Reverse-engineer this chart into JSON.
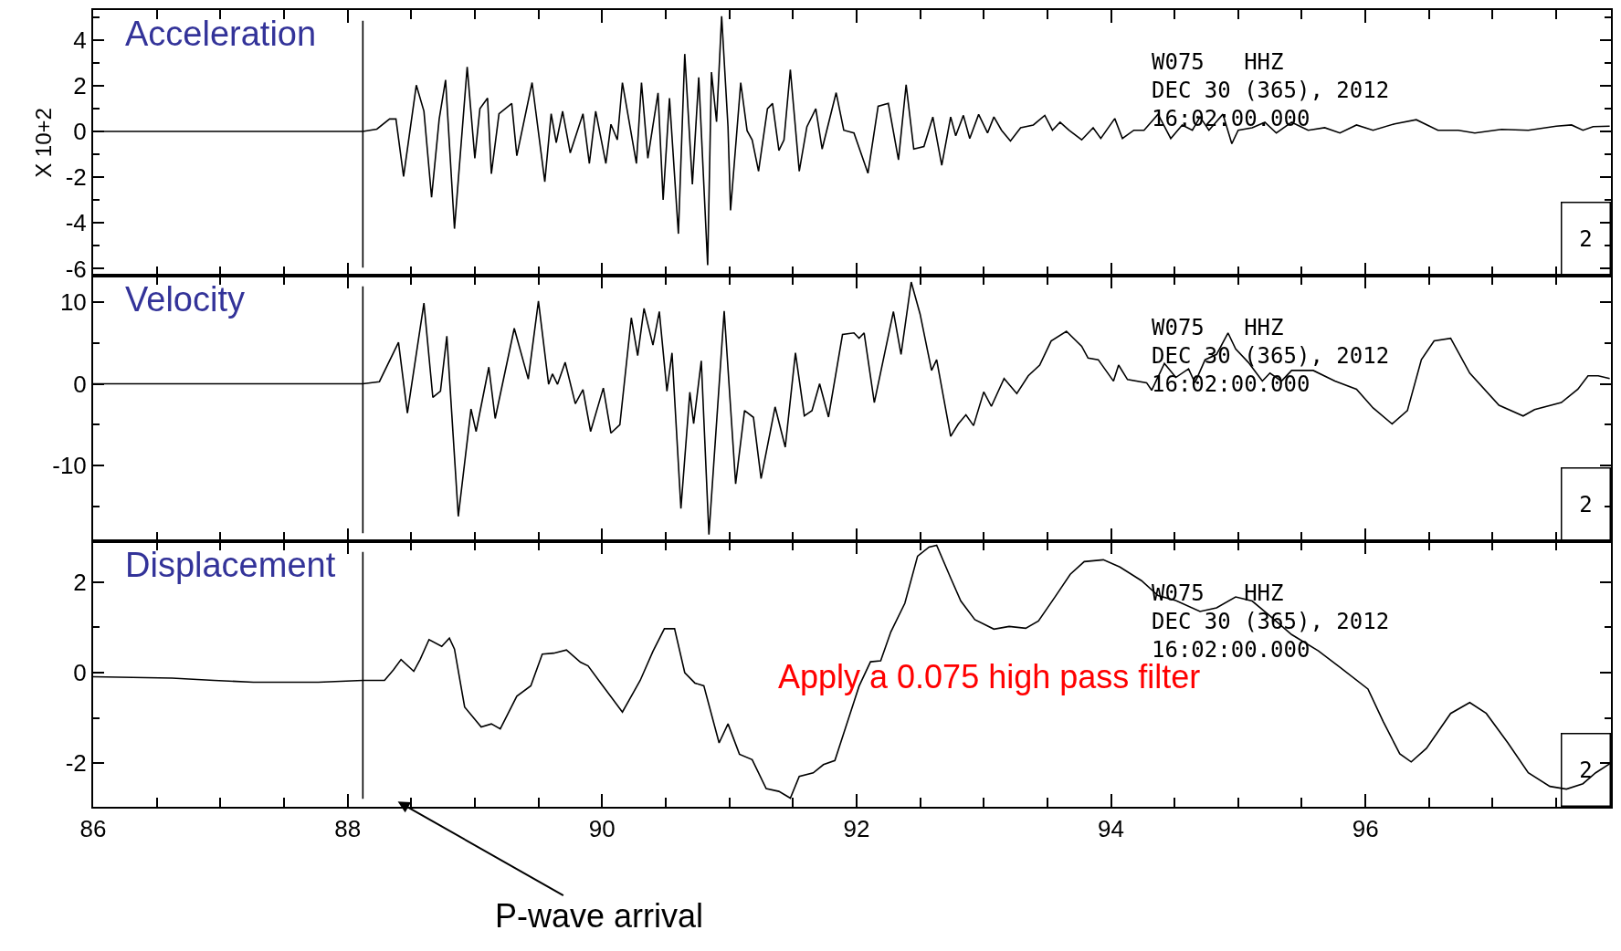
{
  "chart_data": [
    {
      "type": "line",
      "title": "Acceleration",
      "ylabel": "X 10+2",
      "tick_labels": "y",
      "line_style": "solid",
      "xlim": [
        86,
        97.93
      ],
      "xticks": [
        86,
        {
          "value": 86.5,
          "label": null
        },
        {
          "value": 87,
          "label": null
        },
        {
          "value": 87.5,
          "label": null
        },
        88,
        {
          "value": 88.5,
          "label": null
        },
        {
          "value": 89,
          "label": null
        },
        {
          "value": 89.5,
          "label": null
        },
        90,
        {
          "value": 90.5,
          "label": null
        },
        {
          "value": 91,
          "label": null
        },
        {
          "value": 91.5,
          "label": null
        },
        92,
        {
          "value": 92.5,
          "label": null
        },
        {
          "value": 93,
          "label": null
        },
        {
          "value": 93.5,
          "label": null
        },
        94,
        {
          "value": 94.5,
          "label": null
        },
        {
          "value": 95,
          "label": null
        },
        {
          "value": 95.5,
          "label": null
        },
        96,
        {
          "value": 96.5,
          "label": null
        },
        {
          "value": 97,
          "label": null
        },
        {
          "value": 97.5,
          "label": null
        }
      ],
      "ylim": [
        -6.3,
        5.3
      ],
      "yticks": [
        -6,
        {
          "value": -5,
          "label": null
        },
        -4,
        {
          "value": -3,
          "label": null
        },
        -2,
        {
          "value": -1,
          "label": null
        },
        0,
        {
          "value": 1,
          "label": null
        },
        2,
        {
          "value": 3,
          "label": null
        },
        4,
        {
          "value": 5,
          "label": null
        }
      ],
      "ref_lines": [
        {
          "axis": "x",
          "value": 88.12,
          "color": "#000000"
        }
      ],
      "annotations": [
        "W075   HHZ\nDEC 30 (365), 2012\n16:02:00.000",
        "2"
      ],
      "series": [
        {
          "color": "#000000",
          "x": [
            86.0,
            88.12,
            88.23,
            88.33,
            88.38,
            88.44,
            88.54,
            88.6,
            88.66,
            88.72,
            88.77,
            88.84,
            88.94,
            89.0,
            89.04,
            89.1,
            89.13,
            89.19,
            89.29,
            89.33,
            89.45,
            89.55,
            89.6,
            89.64,
            89.69,
            89.75,
            89.85,
            89.9,
            89.95,
            90.03,
            90.07,
            90.12,
            90.16,
            90.27,
            90.31,
            90.36,
            90.44,
            90.48,
            90.53,
            90.6,
            90.65,
            90.71,
            90.76,
            90.83,
            90.86,
            90.9,
            90.94,
            90.99,
            91.01,
            91.09,
            91.14,
            91.18,
            91.23,
            91.3,
            91.34,
            91.39,
            91.43,
            91.48,
            91.55,
            91.61,
            91.68,
            91.73,
            91.84,
            91.9,
            91.98,
            92.09,
            92.17,
            92.25,
            92.33,
            92.39,
            92.45,
            92.53,
            92.6,
            92.67,
            92.74,
            92.78,
            92.84,
            92.89,
            92.96,
            93.03,
            93.08,
            93.14,
            93.21,
            93.29,
            93.39,
            93.48,
            93.54,
            93.6,
            93.67,
            93.77,
            93.86,
            93.92,
            94.03,
            94.09,
            94.18,
            94.26,
            94.37,
            94.47,
            94.56,
            94.64,
            94.7,
            94.77,
            94.88,
            94.95,
            95.0,
            95.11,
            95.21,
            95.3,
            95.42,
            95.55,
            95.68,
            95.8,
            95.93,
            96.06,
            96.23,
            96.4,
            96.57,
            96.73,
            96.86,
            97.07,
            97.28,
            97.5,
            97.62,
            97.71,
            97.79,
            97.92
          ],
          "values": [
            0,
            0,
            0.1,
            0.54,
            0.54,
            -1.97,
            2.02,
            0.88,
            -2.88,
            0.54,
            2.25,
            -4.25,
            2.82,
            -1.17,
            0.99,
            1.45,
            -1.85,
            0.77,
            1.22,
            -1.06,
            2.13,
            -2.2,
            0.77,
            -0.49,
            0.88,
            -0.94,
            0.77,
            -1.4,
            0.88,
            -1.4,
            0.31,
            -0.37,
            2.13,
            -1.4,
            2.13,
            -1.17,
            1.68,
            -2.99,
            1.45,
            -4.47,
            3.38,
            -2.31,
            2.36,
            -5.84,
            2.59,
            0.42,
            5.03,
            0.2,
            -3.45,
            2.13,
            0.03,
            -0.37,
            -1.74,
            0.99,
            1.22,
            -0.83,
            -0.37,
            2.7,
            -1.74,
            0.2,
            0.99,
            -0.77,
            1.69,
            0.05,
            -0.07,
            -1.83,
            1.1,
            1.22,
            -1.24,
            2.04,
            -0.77,
            -0.66,
            0.63,
            -1.48,
            0.63,
            -0.19,
            0.7,
            -0.31,
            0.74,
            -0.07,
            0.63,
            0.05,
            -0.42,
            0.16,
            0.28,
            0.7,
            0.05,
            0.4,
            0.05,
            -0.37,
            0.16,
            -0.31,
            0.56,
            -0.31,
            0.05,
            0.05,
            0.75,
            -0.31,
            0.28,
            0.05,
            0.63,
            0.05,
            0.75,
            -0.54,
            0.05,
            0.16,
            0.4,
            -0.07,
            0.4,
            0.05,
            0.16,
            -0.07,
            0.28,
            0.05,
            0.33,
            0.51,
            0.05,
            0.05,
            -0.07,
            0.09,
            0.05,
            0.23,
            0.28,
            0.05,
            0.21,
            0.23
          ]
        }
      ]
    },
    {
      "type": "line",
      "title": "Velocity",
      "tick_labels": "y",
      "line_style": "solid",
      "xlim": [
        86,
        97.93
      ],
      "xticks": [
        86,
        {
          "value": 86.5,
          "label": null
        },
        {
          "value": 87,
          "label": null
        },
        {
          "value": 87.5,
          "label": null
        },
        88,
        {
          "value": 88.5,
          "label": null
        },
        {
          "value": 89,
          "label": null
        },
        {
          "value": 89.5,
          "label": null
        },
        90,
        {
          "value": 90.5,
          "label": null
        },
        {
          "value": 91,
          "label": null
        },
        {
          "value": 91.5,
          "label": null
        },
        92,
        {
          "value": 92.5,
          "label": null
        },
        {
          "value": 93,
          "label": null
        },
        {
          "value": 93.5,
          "label": null
        },
        94,
        {
          "value": 94.5,
          "label": null
        },
        {
          "value": 95,
          "label": null
        },
        {
          "value": 95.5,
          "label": null
        },
        96,
        {
          "value": 96.5,
          "label": null
        },
        {
          "value": 97,
          "label": null
        },
        {
          "value": 97.5,
          "label": null
        }
      ],
      "ylim": [
        -19.2,
        13.2
      ],
      "yticks": [
        {
          "value": -15,
          "label": null
        },
        -10,
        {
          "value": -5,
          "label": null
        },
        0,
        {
          "value": 5,
          "label": null
        },
        10
      ],
      "ref_lines": [
        {
          "axis": "x",
          "value": 88.12,
          "color": "#000000"
        }
      ],
      "annotations": [
        "W075   HHZ\nDEC 30 (365), 2012\n16:02:00.000",
        "2"
      ],
      "series": [
        {
          "color": "#000000",
          "x": [
            86.0,
            88.12,
            88.25,
            88.4,
            88.47,
            88.6,
            88.67,
            88.73,
            88.78,
            88.87,
            88.97,
            89.01,
            89.11,
            89.16,
            89.31,
            89.42,
            89.5,
            89.58,
            89.61,
            89.65,
            89.71,
            89.79,
            89.85,
            89.91,
            90.01,
            90.07,
            90.14,
            90.23,
            90.28,
            90.33,
            90.4,
            90.45,
            90.51,
            90.55,
            90.62,
            90.69,
            90.72,
            90.78,
            90.84,
            90.96,
            91.05,
            91.12,
            91.19,
            91.25,
            91.36,
            91.44,
            91.52,
            91.59,
            91.65,
            91.71,
            91.78,
            91.89,
            91.98,
            92.02,
            92.06,
            92.14,
            92.29,
            92.35,
            92.43,
            92.5,
            92.59,
            92.63,
            92.74,
            92.8,
            92.86,
            92.92,
            93.0,
            93.06,
            93.16,
            93.26,
            93.35,
            93.44,
            93.53,
            93.65,
            93.77,
            93.82,
            93.9,
            94.02,
            94.06,
            94.13,
            94.28,
            94.32,
            94.42,
            94.51,
            94.61,
            94.66,
            94.74,
            94.83,
            94.92,
            94.98,
            95.08,
            95.19,
            95.25,
            95.34,
            95.42,
            95.59,
            95.76,
            95.93,
            96.06,
            96.21,
            96.33,
            96.44,
            96.54,
            96.67,
            96.82,
            97.05,
            97.24,
            97.33,
            97.54,
            97.67,
            97.75,
            97.83,
            97.92
          ],
          "values": [
            0,
            0,
            0.26,
            5.05,
            -3.58,
            9.84,
            -1.66,
            -0.89,
            5.81,
            -16.17,
            -3.07,
            -5.81,
            2.04,
            -4.22,
            6.77,
            0.58,
            10.1,
            -0.06,
            1.21,
            -0.06,
            2.62,
            -2.43,
            -0.7,
            -5.81,
            -0.51,
            -6.01,
            -4.98,
            8.05,
            3.45,
            9.2,
            4.73,
            8.82,
            -0.89,
            3.77,
            -15.21,
            -1.02,
            -4.86,
            2.81,
            -18.4,
            8.88,
            -12.2,
            -3.26,
            -4.09,
            -11.57,
            -2.81,
            -7.73,
            3.77,
            -3.9,
            -3.27,
            0,
            -4.05,
            6.01,
            6.21,
            5.56,
            6.21,
            -2.29,
            8.82,
            3.59,
            12.42,
            8.5,
            1.63,
            2.94,
            -6.41,
            -4.9,
            -3.79,
            -5.1,
            -0.98,
            -2.75,
            0.65,
            -1.18,
            0.98,
            2.29,
            5.23,
            6.41,
            4.58,
            3.14,
            2.94,
            0.33,
            2.29,
            0.52,
            0.13,
            -0.78,
            2.48,
            0.78,
            1.83,
            0.13,
            2.94,
            3.59,
            6.21,
            4.25,
            2.61,
            0.33,
            1.31,
            0.33,
            1.63,
            1.63,
            0.33,
            -0.65,
            -2.94,
            -4.9,
            -3.27,
            2.94,
            5.23,
            5.56,
            1.31,
            -2.61,
            -3.92,
            -3.14,
            -2.29,
            -0.65,
            0.98,
            0.98,
            0.65
          ]
        }
      ]
    },
    {
      "type": "line",
      "title": "Displacement",
      "line_style": "solid",
      "xlim": [
        86,
        97.93
      ],
      "xticks": [
        86,
        {
          "value": 86.5,
          "label": null
        },
        {
          "value": 87,
          "label": null
        },
        {
          "value": 87.5,
          "label": null
        },
        88,
        {
          "value": 88.5,
          "label": null
        },
        {
          "value": 89,
          "label": null
        },
        {
          "value": 89.5,
          "label": null
        },
        90,
        {
          "value": 90.5,
          "label": null
        },
        {
          "value": 91,
          "label": null
        },
        {
          "value": 91.5,
          "label": null
        },
        92,
        {
          "value": 92.5,
          "label": null
        },
        {
          "value": 93,
          "label": null
        },
        {
          "value": 93.5,
          "label": null
        },
        94,
        {
          "value": 94.5,
          "label": null
        },
        {
          "value": 95,
          "label": null
        },
        {
          "value": 95.5,
          "label": null
        },
        96,
        {
          "value": 96.5,
          "label": null
        },
        {
          "value": 97,
          "label": null
        },
        {
          "value": 97.5,
          "label": null
        }
      ],
      "ylim": [
        -2.96,
        2.9
      ],
      "yticks": [
        -2,
        {
          "value": -1,
          "label": null
        },
        0,
        {
          "value": 1,
          "label": null
        },
        2
      ],
      "ref_lines": [
        {
          "axis": "x",
          "value": 88.12,
          "color": "#000000"
        }
      ],
      "annotations": [
        "W075   HHZ\nDEC 30 (365), 2012\n16:02:00.000",
        "2",
        "Apply a 0.075 high pass filter",
        "P-wave arrival"
      ],
      "series": [
        {
          "color": "#000000",
          "x": [
            86.0,
            86.62,
            86.95,
            87.26,
            87.77,
            88.12,
            88.29,
            88.36,
            88.42,
            88.52,
            88.57,
            88.64,
            88.74,
            88.8,
            88.84,
            88.92,
            89.05,
            89.13,
            89.2,
            89.33,
            89.44,
            89.53,
            89.62,
            89.72,
            89.83,
            89.89,
            89.99,
            90.16,
            90.3,
            90.4,
            90.49,
            90.57,
            90.65,
            90.73,
            90.8,
            90.92,
            90.99,
            91.08,
            91.18,
            91.29,
            91.39,
            91.48,
            91.55,
            91.66,
            91.74,
            91.83,
            91.91,
            92.02,
            92.11,
            92.19,
            92.27,
            92.38,
            92.48,
            92.57,
            92.63,
            92.74,
            92.82,
            92.93,
            93.08,
            93.2,
            93.33,
            93.43,
            93.56,
            93.68,
            93.79,
            93.94,
            94.07,
            94.24,
            94.37,
            94.51,
            94.7,
            94.83,
            94.98,
            95.11,
            95.25,
            95.42,
            95.63,
            95.8,
            96.02,
            96.14,
            96.27,
            96.36,
            96.48,
            96.67,
            96.82,
            96.95,
            97.12,
            97.28,
            97.45,
            97.58,
            97.71,
            97.81,
            97.92
          ],
          "values": [
            -0.09,
            -0.12,
            -0.17,
            -0.21,
            -0.21,
            -0.17,
            -0.17,
            0.06,
            0.29,
            0.03,
            0.29,
            0.73,
            0.58,
            0.76,
            0.52,
            -0.76,
            -1.2,
            -1.13,
            -1.24,
            -0.52,
            -0.29,
            0.41,
            0.43,
            0.5,
            0.23,
            0.15,
            -0.23,
            -0.87,
            -0.17,
            0.47,
            0.97,
            0.97,
            0.0,
            -0.23,
            -0.29,
            -1.55,
            -1.13,
            -1.8,
            -1.92,
            -2.56,
            -2.62,
            -2.77,
            -2.29,
            -2.21,
            -2.03,
            -1.94,
            -1.25,
            -0.3,
            0.24,
            0.26,
            0.9,
            1.53,
            2.57,
            2.77,
            2.81,
            2.09,
            1.58,
            1.17,
            0.96,
            1.02,
            0.98,
            1.14,
            1.67,
            2.17,
            2.45,
            2.49,
            2.33,
            2.03,
            1.7,
            1.59,
            1.35,
            1.43,
            1.67,
            1.58,
            1.25,
            0.84,
            0.48,
            0.12,
            -0.36,
            -1.08,
            -1.79,
            -1.97,
            -1.67,
            -0.9,
            -0.66,
            -0.9,
            -1.55,
            -2.21,
            -2.51,
            -2.57,
            -2.45,
            -2.21,
            -2.01
          ]
        }
      ]
    }
  ]
}
